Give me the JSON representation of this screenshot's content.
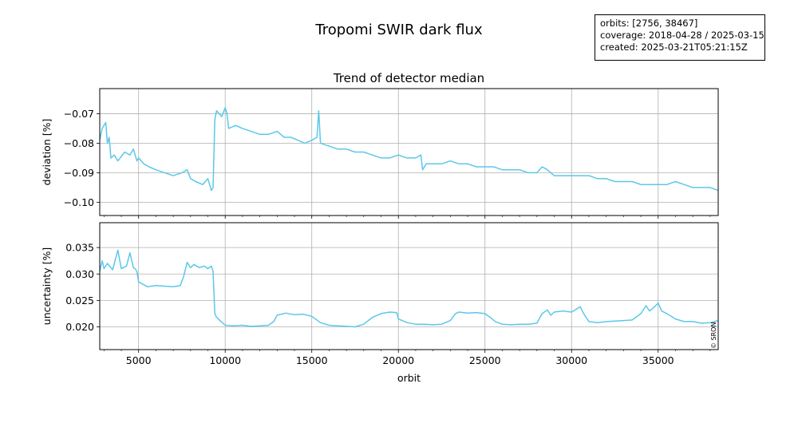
{
  "figure": {
    "title": "Tropomi SWIR dark flux",
    "info_lines": [
      "orbits: [2756, 38467]",
      "coverage: 2018-04-28 / 2025-03-15",
      "created: 2025-03-21T05:21:15Z"
    ],
    "credit": "© SRON",
    "line_color": "#5bc8ea",
    "grid_color": "#b0b0b0"
  },
  "chart_data": [
    {
      "type": "line",
      "title": "Trend of detector median",
      "xlabel": "",
      "ylabel": "deviation [%]",
      "xlim": [
        2756,
        38467
      ],
      "ylim": [
        -0.1045,
        -0.0615
      ],
      "xticks": [
        5000,
        10000,
        15000,
        20000,
        25000,
        30000,
        35000
      ],
      "yticks": [
        -0.07,
        -0.08,
        -0.09,
        -0.1
      ],
      "ytick_labels": [
        "−0.07",
        "−0.08",
        "−0.09",
        "−0.10"
      ],
      "grid": true,
      "series": [
        {
          "x": [
            2756,
            2900,
            3100,
            3200,
            3300,
            3400,
            3600,
            3800,
            4200,
            4500,
            4700,
            4900,
            5000,
            5300,
            5600,
            6000,
            6500,
            7000,
            7500,
            7800,
            8000,
            8300,
            8700,
            9000,
            9200,
            9300,
            9400,
            9500,
            9800,
            10000,
            10100,
            10200,
            10600,
            11000,
            11500,
            12000,
            12500,
            13000,
            13400,
            13800,
            14200,
            14600,
            15000,
            15300,
            15400,
            15500,
            16000,
            16500,
            17000,
            17500,
            18000,
            18500,
            19000,
            19500,
            20000,
            20500,
            21000,
            21300,
            21400,
            21600,
            22000,
            22500,
            23000,
            23500,
            24000,
            24500,
            25000,
            25500,
            26000,
            26500,
            27000,
            27500,
            28000,
            28300,
            28600,
            28800,
            29000,
            29500,
            30000,
            30500,
            31000,
            31500,
            32000,
            32500,
            33000,
            33500,
            34000,
            34500,
            35000,
            35500,
            36000,
            36500,
            37000,
            37500,
            38000,
            38467
          ],
          "y": [
            -0.079,
            -0.075,
            -0.073,
            -0.08,
            -0.078,
            -0.085,
            -0.084,
            -0.086,
            -0.083,
            -0.084,
            -0.082,
            -0.086,
            -0.085,
            -0.087,
            -0.088,
            -0.089,
            -0.09,
            -0.091,
            -0.09,
            -0.089,
            -0.092,
            -0.093,
            -0.094,
            -0.092,
            -0.096,
            -0.095,
            -0.072,
            -0.069,
            -0.071,
            -0.068,
            -0.07,
            -0.075,
            -0.074,
            -0.075,
            -0.076,
            -0.077,
            -0.077,
            -0.076,
            -0.078,
            -0.078,
            -0.079,
            -0.08,
            -0.079,
            -0.078,
            -0.069,
            -0.08,
            -0.081,
            -0.082,
            -0.082,
            -0.083,
            -0.083,
            -0.084,
            -0.085,
            -0.085,
            -0.084,
            -0.085,
            -0.085,
            -0.084,
            -0.089,
            -0.087,
            -0.087,
            -0.087,
            -0.086,
            -0.087,
            -0.087,
            -0.088,
            -0.088,
            -0.088,
            -0.089,
            -0.089,
            -0.089,
            -0.09,
            -0.09,
            -0.088,
            -0.089,
            -0.09,
            -0.091,
            -0.091,
            -0.091,
            -0.091,
            -0.091,
            -0.092,
            -0.092,
            -0.093,
            -0.093,
            -0.093,
            -0.094,
            -0.094,
            -0.094,
            -0.094,
            -0.093,
            -0.094,
            -0.095,
            -0.095,
            -0.095,
            -0.096
          ]
        }
      ]
    },
    {
      "type": "line",
      "title": "",
      "xlabel": "orbit",
      "ylabel": "uncertainty [%]",
      "xlim": [
        2756,
        38467
      ],
      "ylim": [
        0.0157,
        0.0397
      ],
      "xticks": [
        5000,
        10000,
        15000,
        20000,
        25000,
        30000,
        35000
      ],
      "yticks": [
        0.02,
        0.025,
        0.03,
        0.035
      ],
      "ytick_labels": [
        "0.020",
        "0.025",
        "0.030",
        "0.035"
      ],
      "grid": true,
      "series": [
        {
          "x": [
            2756,
            2900,
            3000,
            3200,
            3500,
            3800,
            4000,
            4300,
            4500,
            4700,
            4800,
            4900,
            5000,
            5500,
            6000,
            6500,
            7000,
            7400,
            7600,
            7800,
            8000,
            8200,
            8500,
            8800,
            9000,
            9200,
            9300,
            9400,
            9500,
            9700,
            10000,
            10500,
            11000,
            11500,
            12000,
            12500,
            12800,
            13000,
            13500,
            14000,
            14500,
            15000,
            15500,
            16000,
            16500,
            17000,
            17500,
            18000,
            18500,
            19000,
            19500,
            19900,
            20000,
            20500,
            21000,
            21500,
            22000,
            22500,
            23000,
            23300,
            23500,
            24000,
            24500,
            25000,
            25300,
            25600,
            26000,
            26500,
            27000,
            27500,
            28000,
            28300,
            28600,
            28800,
            29000,
            29500,
            30000,
            30500,
            30700,
            31000,
            31500,
            32000,
            32500,
            33000,
            33500,
            34000,
            34300,
            34500,
            34700,
            35000,
            35200,
            35500,
            36000,
            36500,
            37000,
            37500,
            38000,
            38467
          ],
          "y": [
            0.0305,
            0.0325,
            0.031,
            0.032,
            0.0308,
            0.0345,
            0.031,
            0.0315,
            0.034,
            0.0312,
            0.031,
            0.0305,
            0.0285,
            0.0276,
            0.0278,
            0.0277,
            0.0276,
            0.0278,
            0.0295,
            0.0322,
            0.0312,
            0.0318,
            0.0312,
            0.0315,
            0.031,
            0.0315,
            0.0305,
            0.0225,
            0.0218,
            0.0212,
            0.0203,
            0.0202,
            0.0203,
            0.0201,
            0.0202,
            0.0203,
            0.021,
            0.0222,
            0.0226,
            0.0223,
            0.0224,
            0.022,
            0.0208,
            0.0203,
            0.0202,
            0.0201,
            0.02,
            0.0205,
            0.0218,
            0.0225,
            0.0228,
            0.0227,
            0.0215,
            0.0208,
            0.0205,
            0.0205,
            0.0204,
            0.0205,
            0.0212,
            0.0225,
            0.0228,
            0.0226,
            0.0227,
            0.0225,
            0.0218,
            0.021,
            0.0205,
            0.0204,
            0.0205,
            0.0205,
            0.0207,
            0.0225,
            0.0232,
            0.0222,
            0.0228,
            0.023,
            0.0228,
            0.0238,
            0.0225,
            0.021,
            0.0208,
            0.021,
            0.0211,
            0.0212,
            0.0213,
            0.0225,
            0.024,
            0.023,
            0.0235,
            0.0245,
            0.023,
            0.0225,
            0.0215,
            0.021,
            0.021,
            0.0207,
            0.0208,
            0.0212
          ]
        }
      ]
    }
  ]
}
